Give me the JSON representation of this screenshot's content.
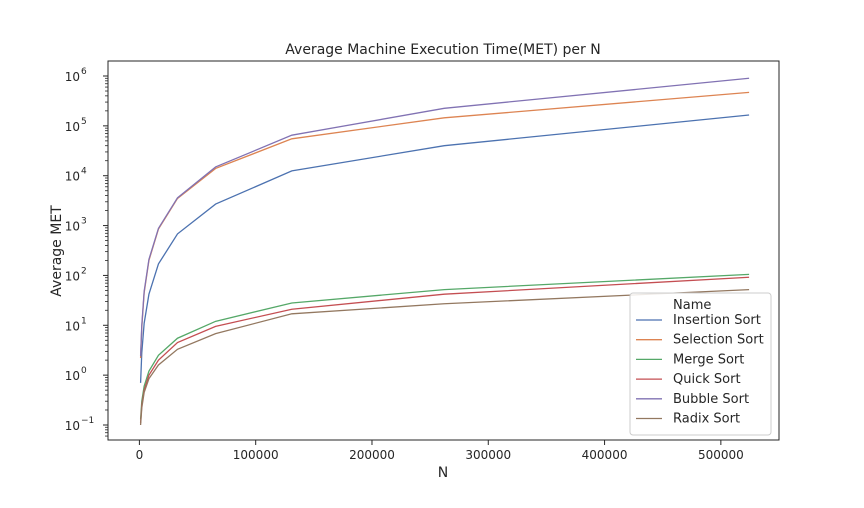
{
  "chart_data": {
    "type": "line",
    "title": "Average Machine Execution Time(MET) per N",
    "xlabel": "N",
    "ylabel": "Average MET",
    "xlim": [
      -27000,
      550000
    ],
    "ylim": [
      0.05,
      2000000
    ],
    "yscale": "log",
    "grid": false,
    "legend_position": "lower-right",
    "legend_title": "Name",
    "x_ticks": [
      0,
      100000,
      200000,
      300000,
      400000,
      500000
    ],
    "x_tick_labels": [
      "0",
      "100000",
      "200000",
      "300000",
      "400000",
      "500000"
    ],
    "y_ticks": [
      0.1,
      1,
      10,
      100,
      1000,
      10000,
      100000,
      1000000
    ],
    "y_tick_labels": [
      {
        "base": "10",
        "exp": "−1"
      },
      {
        "base": "10",
        "exp": "0"
      },
      {
        "base": "10",
        "exp": "1"
      },
      {
        "base": "10",
        "exp": "2"
      },
      {
        "base": "10",
        "exp": "3"
      },
      {
        "base": "10",
        "exp": "4"
      },
      {
        "base": "10",
        "exp": "5"
      },
      {
        "base": "10",
        "exp": "6"
      }
    ],
    "x": [
      1024,
      2048,
      4096,
      8192,
      16384,
      32768,
      65536,
      131072,
      262144,
      524288
    ],
    "series": [
      {
        "name": "Insertion Sort",
        "color": "#4c72b0",
        "values": [
          0.7,
          2.8,
          11,
          42,
          170,
          680,
          2700,
          12500,
          40000,
          165000
        ]
      },
      {
        "name": "Selection Sort",
        "color": "#dd8452",
        "values": [
          2.2,
          9,
          45,
          200,
          850,
          3500,
          14000,
          55000,
          145000,
          470000
        ]
      },
      {
        "name": "Merge Sort",
        "color": "#55a868",
        "values": [
          0.13,
          0.3,
          0.6,
          1.2,
          2.5,
          5.5,
          12,
          28,
          52,
          105
        ]
      },
      {
        "name": "Quick Sort",
        "color": "#c44e52",
        "values": [
          0.11,
          0.25,
          0.5,
          1.0,
          2.0,
          4.5,
          9.5,
          21,
          42,
          92
        ]
      },
      {
        "name": "Bubble Sort",
        "color": "#8172b3",
        "values": [
          2.4,
          10,
          48,
          210,
          880,
          3600,
          15000,
          65000,
          225000,
          900000
        ]
      },
      {
        "name": "Radix Sort",
        "color": "#937860",
        "values": [
          0.1,
          0.22,
          0.45,
          0.85,
          1.6,
          3.3,
          6.8,
          17,
          27,
          52
        ]
      }
    ]
  }
}
